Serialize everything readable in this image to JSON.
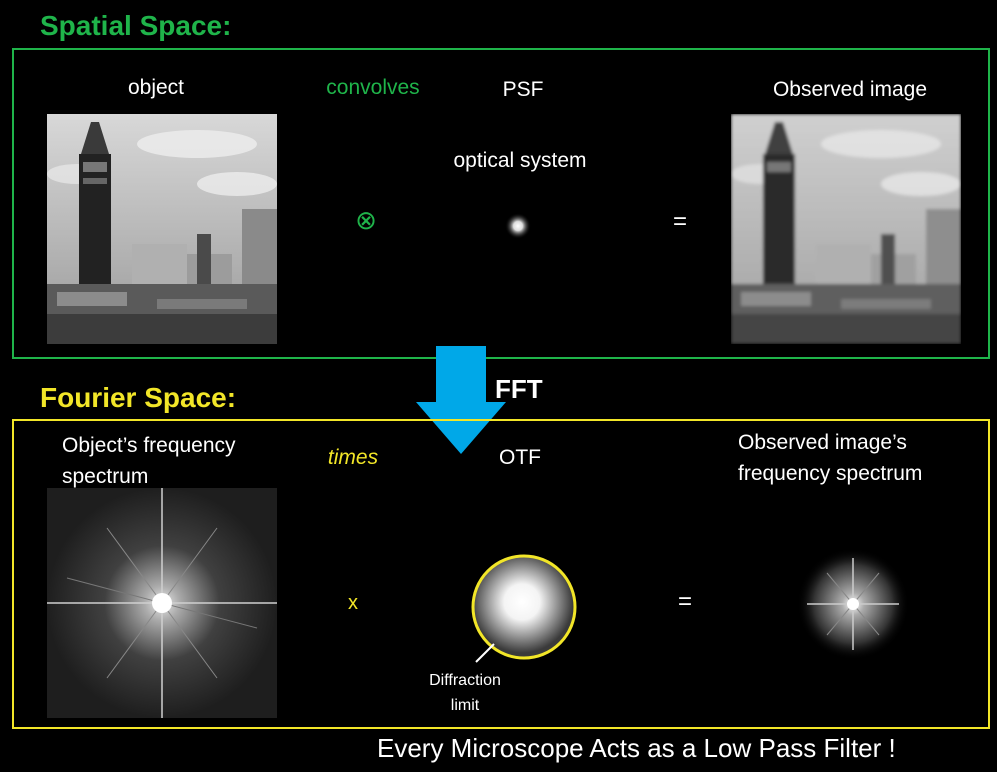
{
  "spatial": {
    "title": "Spatial Space:",
    "object_label": "object",
    "op_label": "convolves",
    "psf_label": "PSF",
    "optical_label": "optical system",
    "observed_label": "Observed image",
    "op_symbol": "⊗",
    "equals": "="
  },
  "fft_label": "FFT",
  "fourier": {
    "title": "Fourier Space:",
    "object_spectrum_label": [
      "Object’s frequency",
      "spectrum"
    ],
    "op_label": "times",
    "otf_label": "OTF",
    "observed_spectrum_label": [
      "Observed image’s",
      "frequency spectrum"
    ],
    "op_symbol": "x",
    "equals": "=",
    "diffraction_label": [
      "Diffraction",
      "limit"
    ]
  },
  "footer": "Every Microscope Acts as a Low Pass Filter !",
  "colors": {
    "green": "#1fb44a",
    "yellow": "#f2e628",
    "arrow": "#00a8e8"
  }
}
